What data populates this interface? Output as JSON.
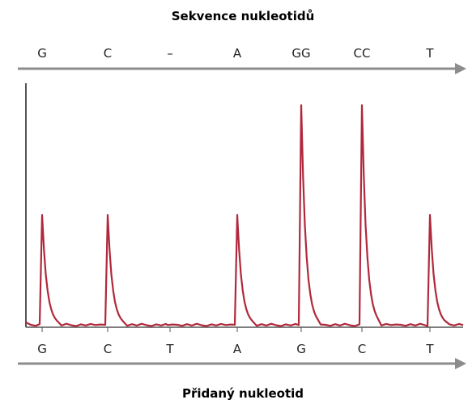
{
  "chart_data": {
    "type": "line",
    "title": "Sekvence nukleotidů",
    "xlabel": "Přidaný nukleotid",
    "top_labels": [
      "G",
      "C",
      "–",
      "A",
      "GG",
      "CC",
      "T"
    ],
    "bottom_labels": [
      "G",
      "C",
      "T",
      "A",
      "G",
      "C",
      "T"
    ],
    "series": [
      {
        "values": [
          1,
          1,
          0,
          1,
          2,
          2,
          1
        ]
      }
    ],
    "ylim": [
      0,
      2.2
    ],
    "grid": false,
    "colors": {
      "trace": "#b0283c",
      "arrow": "#8c8c8c",
      "axis": "#555555"
    }
  }
}
